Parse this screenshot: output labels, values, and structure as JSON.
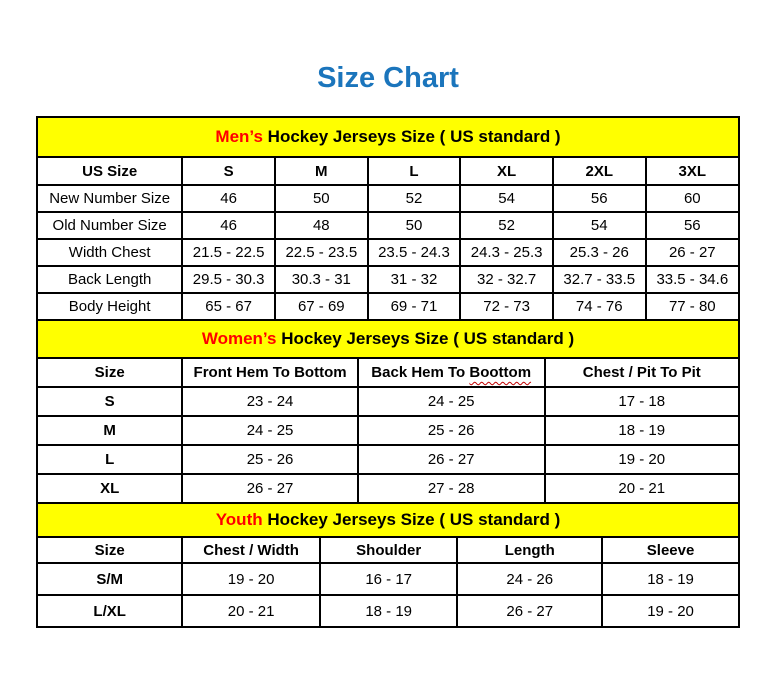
{
  "page": {
    "title": "Size Chart"
  },
  "colors": {
    "title_blue": "#1B75BC",
    "band_yellow": "#FFFF00",
    "accent_red": "#FF0000",
    "border_black": "#000000",
    "squiggle_red": "#C00000"
  },
  "tables": [
    {
      "id": "mens",
      "band": {
        "highlight": "Men’s",
        "rest": " Hockey Jerseys Size ( US standard )"
      },
      "columns": [
        "US Size",
        "S",
        "M",
        "L",
        "XL",
        "2XL",
        "3XL"
      ],
      "rows": [
        {
          "label": "New Number Size",
          "values": [
            "46",
            "50",
            "52",
            "54",
            "56",
            "60"
          ]
        },
        {
          "label": "Old Number Size",
          "values": [
            "46",
            "48",
            "50",
            "52",
            "54",
            "56"
          ]
        },
        {
          "label": "Width Chest",
          "values": [
            "21.5 - 22.5",
            "22.5 - 23.5",
            "23.5 - 24.3",
            "24.3 - 25.3",
            "25.3 - 26",
            "26 - 27"
          ]
        },
        {
          "label": "Back Length",
          "values": [
            "29.5 - 30.3",
            "30.3 - 31",
            "31 - 32",
            "32 - 32.7",
            "32.7 - 33.5",
            "33.5 - 34.6"
          ]
        },
        {
          "label": "Body Height",
          "values": [
            "65 - 67",
            "67 - 69",
            "69 - 71",
            "72 - 73",
            "74 - 76",
            "77 - 80"
          ]
        }
      ]
    },
    {
      "id": "womens",
      "band": {
        "highlight": "Women’s",
        "rest": " Hockey Jerseys Size ( US standard )"
      },
      "columns": [
        "Size",
        "Front Hem To Bottom",
        "Back Hem To Boottom",
        "Chest / Pit To Pit"
      ],
      "misspelled_word": "Boottom",
      "rows": [
        {
          "label": "S",
          "values": [
            "23 - 24",
            "24 - 25",
            "17 - 18"
          ]
        },
        {
          "label": "M",
          "values": [
            "24 - 25",
            "25 - 26",
            "18 - 19"
          ]
        },
        {
          "label": "L",
          "values": [
            "25 - 26",
            "26 - 27",
            "19 - 20"
          ]
        },
        {
          "label": "XL",
          "values": [
            "26 - 27",
            "27 - 28",
            "20 - 21"
          ]
        }
      ]
    },
    {
      "id": "youth",
      "band": {
        "highlight": "Youth",
        "rest": " Hockey Jerseys Size ( US standard )"
      },
      "columns": [
        "Size",
        "Chest / Width",
        "Shoulder",
        "Length",
        "Sleeve"
      ],
      "rows": [
        {
          "label": "S/M",
          "values": [
            "19 - 20",
            "16 - 17",
            "24 - 26",
            "18 - 19"
          ]
        },
        {
          "label": "L/XL",
          "values": [
            "20 - 21",
            "18 - 19",
            "26 - 27",
            "19 - 20"
          ]
        }
      ]
    }
  ]
}
